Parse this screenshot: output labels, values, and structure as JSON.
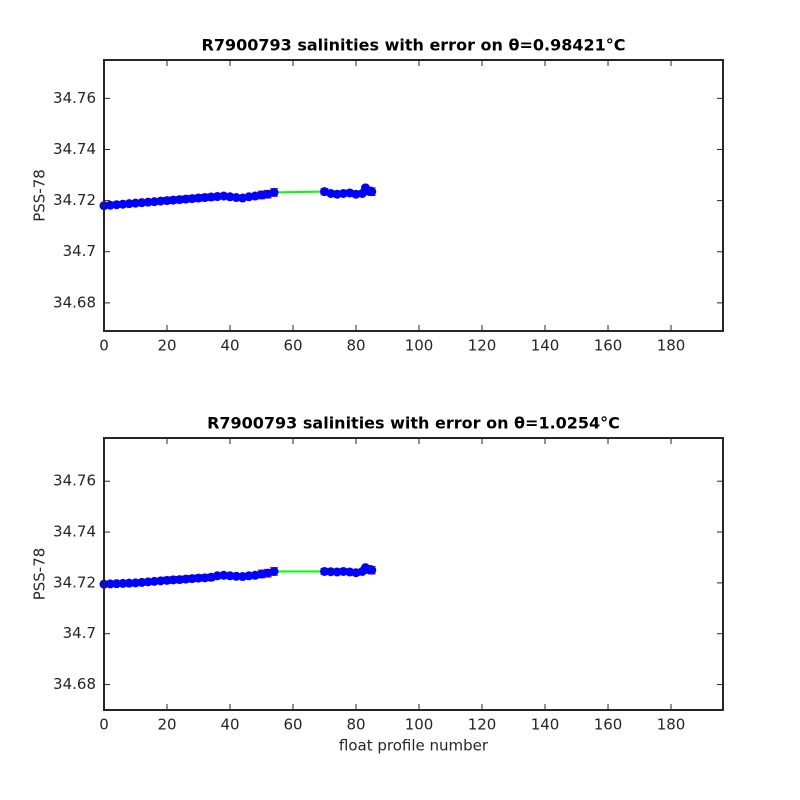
{
  "chart_data": [
    {
      "type": "errorbar_line",
      "title": "R7900793 salinities with error on θ=0.98421°C",
      "ylabel": "PSS-78",
      "x": [
        0,
        2,
        4,
        6,
        8,
        10,
        12,
        14,
        16,
        18,
        20,
        22,
        24,
        26,
        28,
        30,
        32,
        34,
        36,
        38,
        40,
        42,
        44,
        46,
        48,
        50,
        52,
        54,
        70,
        72,
        74,
        76,
        78,
        80,
        82,
        83,
        84,
        85
      ],
      "series": [
        {
          "color": "#0000ff",
          "line_color": "#00ff00",
          "error_color": "#cc0000",
          "values": [
            34.718,
            34.7182,
            34.7184,
            34.7186,
            34.7188,
            34.719,
            34.7192,
            34.7194,
            34.7196,
            34.7198,
            34.72,
            34.7202,
            34.7204,
            34.7206,
            34.7208,
            34.721,
            34.7212,
            34.7214,
            34.7216,
            34.7218,
            34.7215,
            34.7212,
            34.721,
            34.7215,
            34.7218,
            34.7222,
            34.7225,
            34.7232,
            34.7235,
            34.7228,
            34.7225,
            34.7228,
            34.723,
            34.7225,
            34.7228,
            34.725,
            34.7238,
            34.7235
          ],
          "errors": [
            0.0005,
            0.0005,
            0.0005,
            0.0005,
            0.0005,
            0.0005,
            0.0005,
            0.0005,
            0.0005,
            0.0005,
            0.0012,
            0.0012,
            0.0012,
            0.0012,
            0.0012,
            0.0012,
            0.0012,
            0.0012,
            0.0005,
            0.0005,
            0.0005,
            0.0005,
            0.0005,
            0.0005,
            0.0008,
            0.0015,
            0.0015,
            0.0015,
            0.0012,
            0.0005,
            0.0005,
            0.001,
            0.001,
            0.001,
            0.0005,
            0.0005,
            0.0015,
            0.0015
          ]
        }
      ],
      "xlim": [
        0,
        196.5
      ],
      "ylim": [
        34.669,
        34.775
      ],
      "xticks": [
        0,
        20,
        40,
        60,
        80,
        100,
        120,
        140,
        160,
        180
      ],
      "yticks": [
        34.68,
        34.7,
        34.72,
        34.74,
        34.76
      ]
    },
    {
      "type": "errorbar_line",
      "title": "R7900793 salinities with error on θ=1.0254°C",
      "ylabel": "PSS-78",
      "xlabel": "float profile number",
      "x": [
        0,
        2,
        4,
        6,
        8,
        10,
        12,
        14,
        16,
        18,
        20,
        22,
        24,
        26,
        28,
        30,
        32,
        34,
        36,
        38,
        40,
        42,
        44,
        46,
        48,
        50,
        52,
        54,
        70,
        72,
        74,
        76,
        78,
        80,
        82,
        83,
        84,
        85
      ],
      "series": [
        {
          "color": "#0000ff",
          "line_color": "#00ff00",
          "error_color": "#cc0000",
          "values": [
            34.7195,
            34.7196,
            34.7197,
            34.7198,
            34.7199,
            34.72,
            34.7202,
            34.7204,
            34.7206,
            34.7208,
            34.721,
            34.7212,
            34.7213,
            34.7215,
            34.7217,
            34.7219,
            34.722,
            34.7222,
            34.7228,
            34.723,
            34.7228,
            34.7226,
            34.7225,
            34.7228,
            34.723,
            34.7235,
            34.7238,
            34.7245,
            34.7245,
            34.7244,
            34.7243,
            34.7245,
            34.7243,
            34.724,
            34.7245,
            34.726,
            34.7253,
            34.725
          ],
          "errors": [
            0.0005,
            0.0005,
            0.0005,
            0.0005,
            0.0005,
            0.0005,
            0.0005,
            0.0005,
            0.0005,
            0.0005,
            0.0012,
            0.0012,
            0.0012,
            0.0012,
            0.0012,
            0.0012,
            0.0012,
            0.0012,
            0.0005,
            0.0005,
            0.0005,
            0.0005,
            0.0005,
            0.0005,
            0.0008,
            0.0015,
            0.0015,
            0.0015,
            0.0012,
            0.0005,
            0.0005,
            0.001,
            0.001,
            0.001,
            0.0005,
            0.0005,
            0.0015,
            0.0015
          ]
        }
      ],
      "xlim": [
        0,
        196.5
      ],
      "ylim": [
        34.67,
        34.777
      ],
      "xticks": [
        0,
        20,
        40,
        60,
        80,
        100,
        120,
        140,
        160,
        180
      ],
      "yticks": [
        34.68,
        34.7,
        34.72,
        34.74,
        34.76
      ]
    }
  ]
}
